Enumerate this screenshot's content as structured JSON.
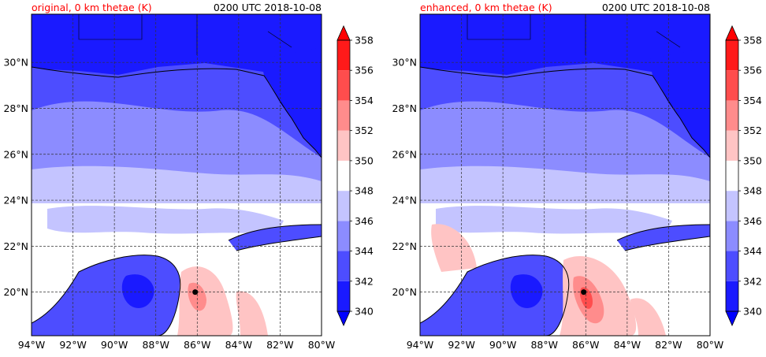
{
  "time_label": "0200 UTC 2018-10-08",
  "panels": [
    {
      "title": "original, 0 km thetae (K)",
      "variant": "original"
    },
    {
      "title": "enhanced, 0 km thetae (K)",
      "variant": "enhanced"
    }
  ],
  "x_ticks": [
    "94°W",
    "92°W",
    "90°W",
    "88°W",
    "86°W",
    "84°W",
    "82°W",
    "80°W"
  ],
  "y_ticks": [
    "20°N",
    "22°N",
    "24°N",
    "26°N",
    "28°N",
    "30°N"
  ],
  "lon_range": [
    -94,
    -80
  ],
  "lat_range": [
    18.1,
    32.1
  ],
  "colorbar": {
    "levels": [
      340,
      342,
      344,
      346,
      348,
      350,
      352,
      354,
      356,
      358
    ],
    "labels": [
      "340",
      "342",
      "344",
      "346",
      "348",
      "350",
      "352",
      "354",
      "356",
      "358"
    ],
    "colors": [
      "#1a1aff",
      "#4d4dff",
      "#8c8cff",
      "#c4c4ff",
      "#ffffff",
      "#ffc4c4",
      "#ff8c8c",
      "#ff4d4d",
      "#ff1a1a"
    ],
    "under_color": "#0000ff",
    "over_color": "#ff0000"
  },
  "storm_marker": {
    "lon": -86.1,
    "lat": 20.0
  },
  "colors": {
    "land_blue": "#0000ff",
    "ocean_mid": "#8c8cff"
  }
}
